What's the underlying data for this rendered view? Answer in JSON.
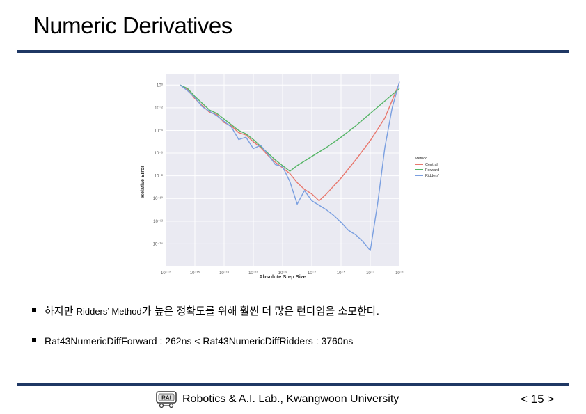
{
  "slide": {
    "title": "Numeric Derivatives",
    "bullet1": {
      "text_a": "하지만 ",
      "text_b": "Ridders’ Method",
      "text_c": "가 높은 정확도를 위해 훨씬 더 많은 런타임을 소모한다."
    },
    "bullet2": "Rat43NumericDiffForward : 262ns < Rat43NumericDiffRidders : 3760ns",
    "footer": "Robotics & A.I. Lab., Kwangwoon University",
    "page": "< 15 >",
    "logo_text": "RAI"
  },
  "chart_data": {
    "type": "line",
    "xlabel": "Absolute Step Size",
    "ylabel": "Relative Error",
    "x_scale": "log",
    "y_scale": "log",
    "xlim_exp": [
      -17,
      -1
    ],
    "ylim_exp": [
      -16,
      1
    ],
    "x_ticks": [
      "10⁻¹⁷",
      "10⁻¹⁵",
      "10⁻¹³",
      "10⁻¹¹",
      "10⁻⁹",
      "10⁻⁷",
      "10⁻⁵",
      "10⁻³",
      "10⁻¹"
    ],
    "y_ticks": [
      "10⁰",
      "10⁻²",
      "10⁻⁴",
      "10⁻⁶",
      "10⁻⁸",
      "10⁻¹⁰",
      "10⁻¹²",
      "10⁻¹⁴"
    ],
    "grid": true,
    "legend": {
      "placement": "right",
      "title": "Method"
    },
    "series": [
      {
        "name": "Central",
        "color": "#e8776d",
        "x": [
          -16,
          -15.5,
          -15,
          -14.5,
          -14,
          -13.5,
          -13,
          -12.5,
          -12,
          -11.5,
          -11,
          -10.5,
          -10,
          -9.5,
          -9,
          -8.5,
          -8,
          -7.5,
          -7,
          -6.5,
          -6,
          -5,
          -4,
          -3,
          -2,
          -1
        ],
        "y": [
          0,
          -0.4,
          -1.2,
          -1.8,
          -2.4,
          -2.6,
          -3.3,
          -3.6,
          -4.2,
          -4.4,
          -5.0,
          -5.5,
          -6.2,
          -6.8,
          -7.3,
          -7.8,
          -8.6,
          -9.2,
          -9.6,
          -10.2,
          -9.6,
          -8.2,
          -6.6,
          -4.9,
          -2.9,
          0.2
        ]
      },
      {
        "name": "Forward",
        "color": "#55b566",
        "x": [
          -16,
          -15.5,
          -15,
          -14.5,
          -14,
          -13.5,
          -13,
          -12.5,
          -12,
          -11.5,
          -11,
          -10.5,
          -10,
          -9.5,
          -9,
          -8.5,
          -8,
          -7,
          -6,
          -5,
          -4,
          -3,
          -2,
          -1
        ],
        "y": [
          0,
          -0.3,
          -1.0,
          -1.6,
          -2.2,
          -2.5,
          -3.0,
          -3.5,
          -4.0,
          -4.3,
          -4.8,
          -5.4,
          -6.0,
          -6.6,
          -7.1,
          -7.6,
          -7.1,
          -6.3,
          -5.5,
          -4.6,
          -3.6,
          -2.5,
          -1.4,
          -0.3
        ]
      },
      {
        "name": "Ridders'",
        "color": "#7a9fe0",
        "x": [
          -16,
          -15.5,
          -15,
          -14.5,
          -14,
          -13.5,
          -13,
          -12.5,
          -12,
          -11.5,
          -11,
          -10.5,
          -10,
          -9.5,
          -9,
          -8.5,
          -8,
          -7.5,
          -7,
          -6.5,
          -6,
          -5.5,
          -5,
          -4.5,
          -4,
          -3.5,
          -3,
          -2.5,
          -2,
          -1.5,
          -1
        ],
        "y": [
          0,
          -0.5,
          -1.1,
          -1.9,
          -2.3,
          -2.7,
          -3.2,
          -3.7,
          -4.8,
          -4.6,
          -5.6,
          -5.3,
          -6.1,
          -7.0,
          -7.2,
          -8.5,
          -10.5,
          -9.3,
          -10.2,
          -10.6,
          -11.0,
          -11.5,
          -12.1,
          -12.8,
          -13.2,
          -13.8,
          -14.6,
          -10.5,
          -5.5,
          -2.0,
          0.3
        ]
      }
    ]
  }
}
